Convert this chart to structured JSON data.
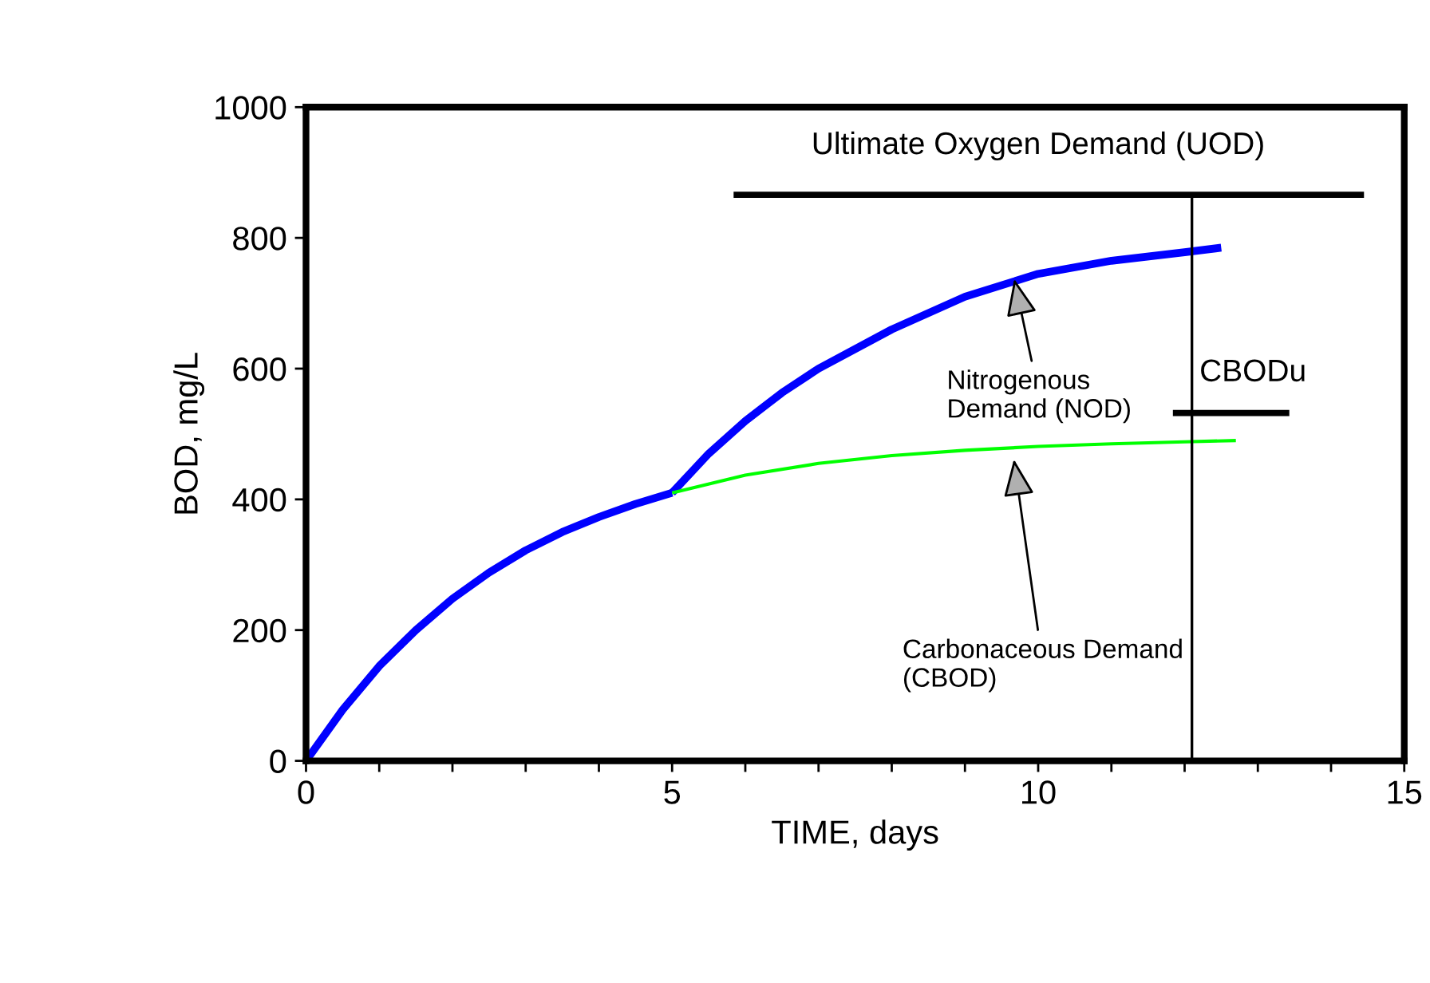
{
  "chart_data": {
    "type": "line",
    "xlabel": "TIME, days",
    "ylabel": "BOD, mg/L",
    "xlim": [
      0,
      15
    ],
    "ylim": [
      0,
      1000
    ],
    "xticks": [
      0,
      {
        "value": 1,
        "label": null
      },
      {
        "value": 2,
        "label": null
      },
      {
        "value": 3,
        "label": null
      },
      {
        "value": 4,
        "label": null
      },
      5,
      {
        "value": 6,
        "label": null
      },
      {
        "value": 7,
        "label": null
      },
      {
        "value": 8,
        "label": null
      },
      {
        "value": 9,
        "label": null
      },
      10,
      {
        "value": 11,
        "label": null
      },
      {
        "value": 12,
        "label": null
      },
      {
        "value": 13,
        "label": null
      },
      {
        "value": 14,
        "label": null
      },
      15
    ],
    "yticks": [
      0,
      200,
      400,
      600,
      800,
      1000
    ],
    "grid": false,
    "legend": false,
    "marker": "none",
    "series": [
      {
        "color": "#0000ff",
        "x": [
          0,
          0.5,
          1,
          1.5,
          2,
          2.5,
          3,
          3.5,
          4,
          4.5,
          5
        ],
        "values": [
          0,
          78,
          145,
          200,
          248,
          288,
          322,
          350,
          373,
          393,
          410
        ]
      },
      {
        "color": "#0000ff",
        "x": [
          5,
          5.5,
          6,
          6.5,
          7,
          8,
          9,
          10,
          11,
          12,
          12.5
        ],
        "values": [
          410,
          470,
          520,
          563,
          600,
          660,
          710,
          745,
          765,
          778,
          785
        ]
      },
      {
        "color": "#00ff00",
        "x": [
          5,
          6,
          7,
          8,
          9,
          10,
          11,
          12,
          12.7
        ],
        "values": [
          410,
          437,
          455,
          467,
          475,
          481,
          485,
          488,
          490
        ]
      },
      {
        "color": "#000000",
        "x": [
          5.84,
          14.45
        ],
        "values": [
          866,
          866
        ]
      },
      {
        "color": "#000000",
        "x": [
          12.1,
          12.1
        ],
        "values": [
          0,
          866
        ]
      },
      {
        "color": "#000000",
        "x": [
          11.84,
          13.43
        ],
        "values": [
          532,
          532
        ]
      }
    ],
    "annotations": [
      {
        "text": "Ultimate Oxygen Demand (UOD)",
        "x": 10,
        "y": 866
      },
      {
        "text": "Nitrogenous\nDemand (NOD)",
        "x": 9.66,
        "y": 744
      },
      {
        "text": "Carbonaceous Demand\n(CBOD)",
        "x": 9.66,
        "y": 468
      },
      {
        "text": "CBODu",
        "x": 11.84,
        "y": 532
      }
    ]
  }
}
